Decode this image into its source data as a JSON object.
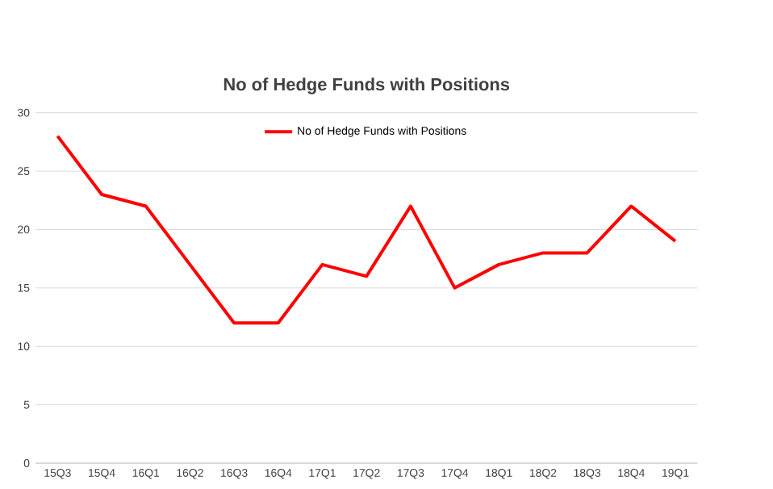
{
  "chart_data": {
    "type": "line",
    "title": "No of Hedge Funds with Positions",
    "categories": [
      "15Q3",
      "15Q4",
      "16Q1",
      "16Q2",
      "16Q3",
      "16Q4",
      "17Q1",
      "17Q2",
      "17Q3",
      "17Q4",
      "18Q1",
      "18Q2",
      "18Q3",
      "18Q4",
      "19Q1"
    ],
    "series": [
      {
        "name": "No of Hedge Funds with Positions",
        "color": "#ff0000",
        "values": [
          28,
          23,
          22,
          17,
          12,
          12,
          17,
          16,
          22,
          15,
          17,
          18,
          18,
          22,
          19
        ]
      }
    ],
    "ylim": [
      0,
      30
    ],
    "yticks": [
      0,
      5,
      10,
      15,
      20,
      25,
      30
    ],
    "grid": "y",
    "legend": "top",
    "marker": "none",
    "line_style": "solid"
  }
}
